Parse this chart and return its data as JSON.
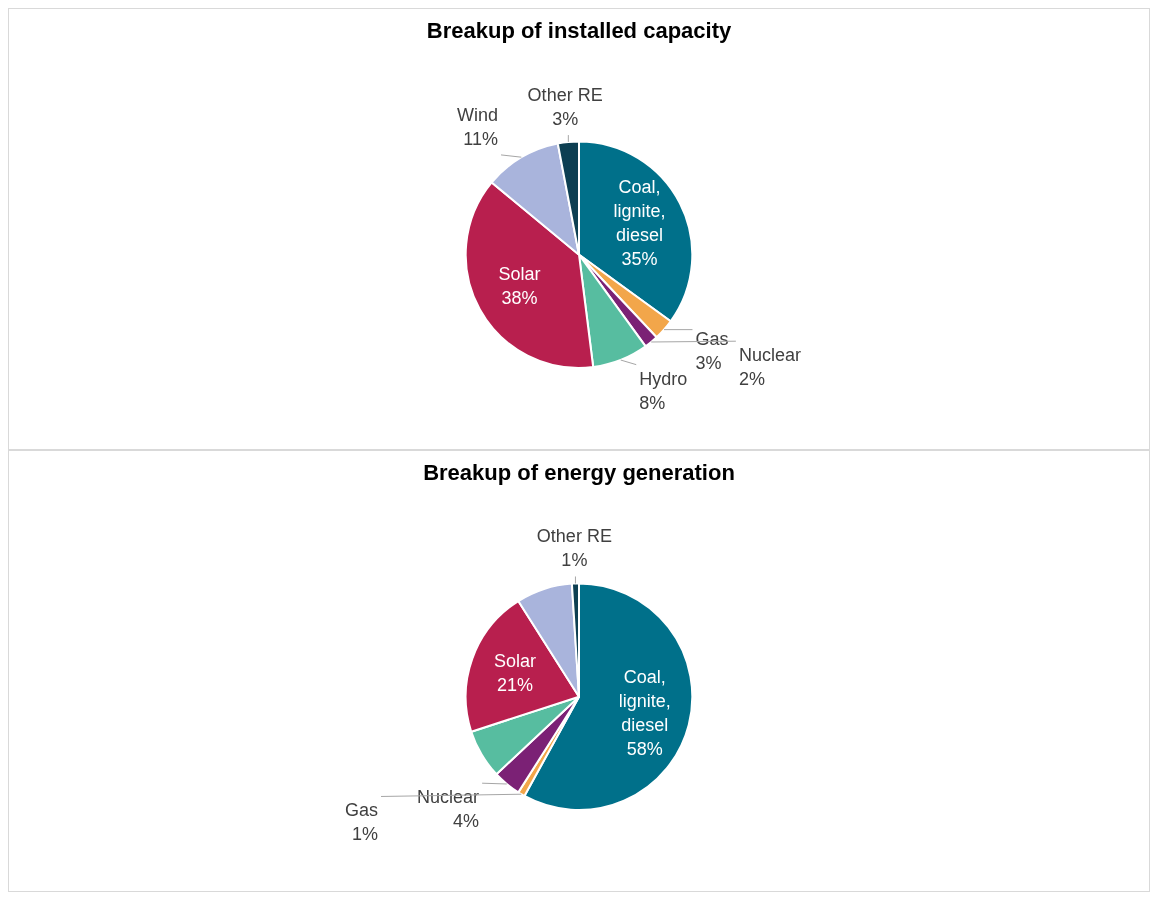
{
  "chart_data": [
    {
      "type": "pie",
      "title": "Breakup of installed capacity",
      "categories": [
        "Coal, lignite, diesel",
        "Gas",
        "Nuclear",
        "Hydro",
        "Solar",
        "Wind",
        "Other RE"
      ],
      "values": [
        35,
        3,
        2,
        8,
        38,
        11,
        3
      ],
      "colors": [
        "#00708a",
        "#f2a64a",
        "#7b2175",
        "#57bda0",
        "#b81f4e",
        "#a9b4dc",
        "#0d3f52"
      ],
      "value_labels": [
        "35%",
        "3%",
        "2%",
        "8%",
        "38%",
        "11%",
        "3%"
      ]
    },
    {
      "type": "pie",
      "title": "Breakup of energy generation",
      "categories": [
        "Coal, lignite, diesel",
        "Gas",
        "Nuclear",
        null,
        "Solar",
        null,
        "Other RE"
      ],
      "values": [
        58,
        1,
        4,
        7,
        21,
        8,
        1
      ],
      "colors": [
        "#00708a",
        "#f2a64a",
        "#7b2175",
        "#57bda0",
        "#b81f4e",
        "#a9b4dc",
        "#0d3f52"
      ],
      "value_labels": [
        "58%",
        "1%",
        "4%",
        null,
        "21%",
        null,
        "1%"
      ]
    }
  ]
}
